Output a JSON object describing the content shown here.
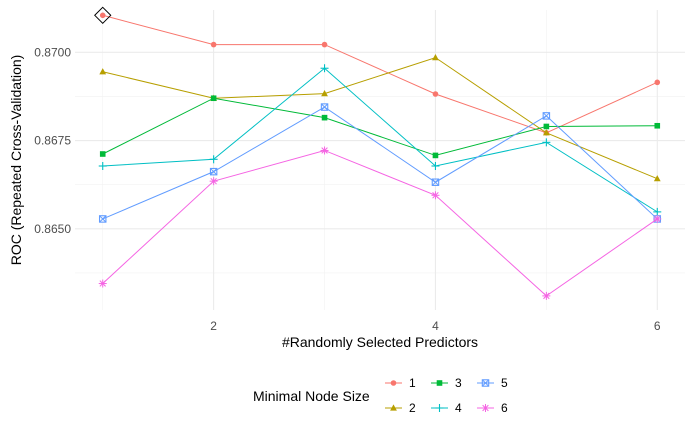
{
  "chart_data": {
    "type": "line",
    "title": "",
    "xlabel": "#Randomly Selected Predictors",
    "ylabel": "ROC (Repeated Cross-Validation)",
    "x": [
      1,
      2,
      3,
      4,
      5,
      6
    ],
    "xlim": [
      0.75,
      6.25
    ],
    "ylim": [
      0.8627,
      0.8712
    ],
    "x_ticks": [
      2,
      4,
      6
    ],
    "y_ticks": [
      0.865,
      0.8675,
      0.87
    ],
    "y_tick_labels": [
      "0.8650",
      "0.8675",
      "0.8700"
    ],
    "grid": true,
    "legend": {
      "title": "Minimal Node Size",
      "position": "bottom"
    },
    "series": [
      {
        "name": "1",
        "color": "#F8766D",
        "marker": "circle",
        "values": [
          0.87105,
          0.87022,
          0.87022,
          0.86882,
          0.86772,
          0.86915
        ]
      },
      {
        "name": "2",
        "color": "#B79F00",
        "marker": "triangle",
        "values": [
          0.86945,
          0.8687,
          0.86883,
          0.86985,
          0.86772,
          0.86642
        ]
      },
      {
        "name": "3",
        "color": "#00BA38",
        "marker": "square",
        "values": [
          0.86712,
          0.8687,
          0.86815,
          0.86708,
          0.8679,
          0.86792
        ]
      },
      {
        "name": "4",
        "color": "#00BFC4",
        "marker": "plus",
        "values": [
          0.86678,
          0.86697,
          0.86955,
          0.86678,
          0.86745,
          0.86548
        ]
      },
      {
        "name": "5",
        "color": "#619CFF",
        "marker": "square-x",
        "values": [
          0.86528,
          0.86662,
          0.86845,
          0.86632,
          0.8682,
          0.86528
        ]
      },
      {
        "name": "6",
        "color": "#F564E3",
        "marker": "asterisk",
        "values": [
          0.86345,
          0.86635,
          0.86722,
          0.86595,
          0.8631,
          0.86528
        ]
      }
    ],
    "annotation": {
      "type": "best-marker",
      "symbol": "diamond",
      "series": "1",
      "x": 1
    }
  }
}
